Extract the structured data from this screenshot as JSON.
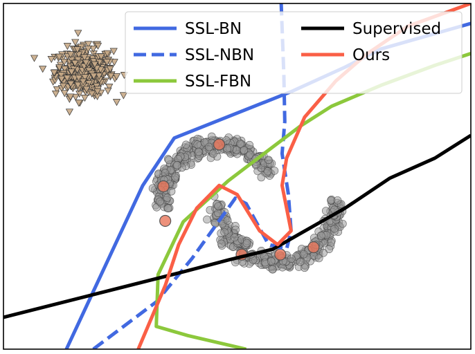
{
  "chart_data": {
    "type": "scatter",
    "title": "",
    "xlabel": "",
    "ylabel": "",
    "xlim": [
      -3.0,
      2.2
    ],
    "ylim": [
      -1.6,
      2.2
    ],
    "ticks_visible": false,
    "grid": false,
    "legend": {
      "placement": "top-right",
      "columns": 2,
      "entries": [
        {
          "label": "SSL-BN",
          "color": "#4169e1",
          "style": "solid"
        },
        {
          "label": "Supervised",
          "color": "#000000",
          "style": "solid"
        },
        {
          "label": "SSL-NBN",
          "color": "#4169e1",
          "style": "dashed"
        },
        {
          "label": "Ours",
          "color": "#fa5f46",
          "style": "solid"
        },
        {
          "label": "SSL-FBN",
          "color": "#8cc83c",
          "style": "solid"
        }
      ]
    },
    "point_groups": [
      {
        "kind": "cluster",
        "marker": "triangle-down",
        "color": "#c8aa87",
        "center": [
          -2.1,
          1.45
        ],
        "count": 400,
        "spread": [
          0.16,
          0.13
        ]
      },
      {
        "kind": "moon-upper",
        "marker": "circle",
        "color": "#9a9a9a",
        "center": [
          -0.6,
          0.0
        ],
        "radius": 0.65,
        "angle_range_deg": [
          30,
          180
        ],
        "count": 350,
        "spread": 0.05
      },
      {
        "kind": "moon-lower",
        "marker": "circle",
        "color": "#9a9a9a",
        "center": [
          0.05,
          0.0
        ],
        "radius": 0.65,
        "angle_range_deg": [
          180,
          360
        ],
        "count": 350,
        "spread": 0.05
      }
    ],
    "labeled_points": {
      "marker": "circle",
      "color": "#e8765a",
      "points": [
        [
          -0.6,
          0.65
        ],
        [
          -1.22,
          0.19
        ],
        [
          -1.2,
          -0.19
        ],
        [
          -0.35,
          -0.56
        ],
        [
          0.08,
          -0.56
        ],
        [
          0.45,
          -0.48
        ]
      ]
    },
    "series": [
      {
        "name": "SSL-BN",
        "color": "#4169e1",
        "dash": "solid",
        "x": [
          -2.3,
          -1.45,
          -1.1,
          0.2,
          0.8,
          1.2,
          2.2
        ],
        "y": [
          -1.6,
          0.2,
          0.72,
          1.23,
          1.5,
          1.7,
          1.98
        ]
      },
      {
        "name": "SSL-NBN",
        "color": "#4169e1",
        "dash": "dashed",
        "x": [
          -2.0,
          -1.3,
          -0.9,
          -0.42,
          -0.3,
          -0.05,
          0.15,
          0.2,
          0.17,
          0.1,
          0.13,
          0.12,
          0.09
        ],
        "y": [
          -1.6,
          -1.08,
          -0.6,
          0.06,
          0.0,
          -0.45,
          -0.5,
          -0.3,
          0.1,
          0.55,
          0.9,
          1.4,
          2.2
        ]
      },
      {
        "name": "SSL-FBN",
        "color": "#8cc83c",
        "dash": "solid",
        "x": [
          -0.3,
          -0.95,
          -1.3,
          -1.28,
          -1.0,
          -0.5,
          -0.1,
          0.3,
          0.65,
          1.2,
          1.8,
          2.2
        ],
        "y": [
          -1.6,
          -1.45,
          -1.35,
          -0.78,
          -0.2,
          0.25,
          0.55,
          0.85,
          1.07,
          1.3,
          1.52,
          1.65
        ]
      },
      {
        "name": "Supervised",
        "color": "#000000",
        "dash": "solid",
        "x": [
          -3.0,
          -2.0,
          -1.0,
          -0.5,
          0.0,
          0.3,
          0.8,
          1.3,
          1.8,
          2.2
        ],
        "y": [
          -1.25,
          -1.0,
          -0.75,
          -0.62,
          -0.5,
          -0.33,
          -0.05,
          0.28,
          0.5,
          0.75
        ]
      },
      {
        "name": "Ours",
        "color": "#fa5f46",
        "dash": "solid",
        "x": [
          -1.5,
          -1.2,
          -1.05,
          -0.85,
          -0.6,
          -0.4,
          -0.15,
          0.05,
          0.2,
          0.1,
          0.15,
          0.35,
          0.7,
          1.05,
          1.5,
          2.2
        ],
        "y": [
          -1.6,
          -0.9,
          -0.45,
          -0.05,
          0.2,
          0.1,
          -0.3,
          -0.45,
          -0.3,
          0.2,
          0.5,
          0.95,
          1.35,
          1.65,
          1.95,
          2.2
        ]
      }
    ]
  }
}
